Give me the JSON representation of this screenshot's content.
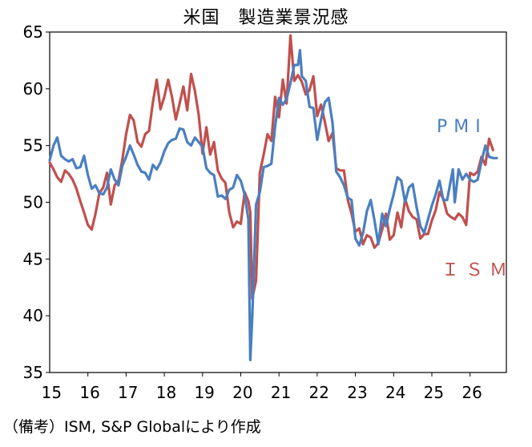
{
  "chart_data": {
    "type": "line",
    "title": "米国　製造業景況感",
    "xlabel": "",
    "ylabel": "",
    "ylim": [
      35,
      65
    ],
    "xlim": [
      2015.0,
      2026.95
    ],
    "yticks": [
      "65",
      "60",
      "55",
      "50",
      "45",
      "40",
      "35"
    ],
    "xticks": [
      "15",
      "16",
      "17",
      "18",
      "19",
      "20",
      "21",
      "22",
      "23",
      "24",
      "25",
      "26"
    ],
    "grid": false,
    "series": [
      {
        "name": "PMI",
        "color": "#4a7fc0",
        "label_position": "right",
        "points": [
          [
            2015.0,
            53.7
          ],
          [
            2015.1,
            55.0
          ],
          [
            2015.2,
            55.7
          ],
          [
            2015.3,
            54.1
          ],
          [
            2015.4,
            53.8
          ],
          [
            2015.5,
            53.6
          ],
          [
            2015.6,
            53.8
          ],
          [
            2015.7,
            53.0
          ],
          [
            2015.8,
            53.1
          ],
          [
            2015.9,
            54.1
          ],
          [
            2016.0,
            52.4
          ],
          [
            2016.1,
            51.2
          ],
          [
            2016.2,
            51.5
          ],
          [
            2016.3,
            50.8
          ],
          [
            2016.4,
            50.7
          ],
          [
            2016.5,
            51.3
          ],
          [
            2016.6,
            52.9
          ],
          [
            2016.7,
            52.0
          ],
          [
            2016.8,
            51.5
          ],
          [
            2016.9,
            53.2
          ],
          [
            2017.0,
            54.0
          ],
          [
            2017.1,
            55.0
          ],
          [
            2017.2,
            54.2
          ],
          [
            2017.3,
            53.3
          ],
          [
            2017.4,
            52.7
          ],
          [
            2017.5,
            52.6
          ],
          [
            2017.6,
            52.0
          ],
          [
            2017.7,
            53.3
          ],
          [
            2017.8,
            52.9
          ],
          [
            2017.9,
            53.5
          ],
          [
            2018.0,
            54.5
          ],
          [
            2018.1,
            55.2
          ],
          [
            2018.2,
            55.5
          ],
          [
            2018.3,
            55.6
          ],
          [
            2018.4,
            56.5
          ],
          [
            2018.5,
            56.4
          ],
          [
            2018.6,
            55.3
          ],
          [
            2018.7,
            55.0
          ],
          [
            2018.8,
            55.7
          ],
          [
            2018.9,
            55.3
          ],
          [
            2019.0,
            54.9
          ],
          [
            2019.1,
            53.0
          ],
          [
            2019.2,
            52.6
          ],
          [
            2019.3,
            52.4
          ],
          [
            2019.4,
            50.5
          ],
          [
            2019.5,
            50.6
          ],
          [
            2019.6,
            50.3
          ],
          [
            2019.7,
            51.1
          ],
          [
            2019.8,
            51.3
          ],
          [
            2019.9,
            52.4
          ],
          [
            2020.0,
            51.9
          ],
          [
            2020.1,
            50.7
          ],
          [
            2020.2,
            48.5
          ],
          [
            2020.25,
            36.1
          ],
          [
            2020.3,
            39.8
          ],
          [
            2020.4,
            49.8
          ],
          [
            2020.5,
            50.9
          ],
          [
            2020.6,
            53.1
          ],
          [
            2020.7,
            53.2
          ],
          [
            2020.8,
            53.4
          ],
          [
            2020.9,
            56.7
          ],
          [
            2021.0,
            59.2
          ],
          [
            2021.1,
            58.6
          ],
          [
            2021.2,
            59.1
          ],
          [
            2021.3,
            60.5
          ],
          [
            2021.4,
            62.1
          ],
          [
            2021.5,
            62.1
          ],
          [
            2021.55,
            63.4
          ],
          [
            2021.6,
            61.1
          ],
          [
            2021.7,
            60.7
          ],
          [
            2021.8,
            58.4
          ],
          [
            2021.9,
            58.3
          ],
          [
            2022.0,
            55.5
          ],
          [
            2022.1,
            57.3
          ],
          [
            2022.2,
            58.8
          ],
          [
            2022.3,
            59.2
          ],
          [
            2022.4,
            57.0
          ],
          [
            2022.5,
            52.7
          ],
          [
            2022.6,
            52.2
          ],
          [
            2022.7,
            51.5
          ],
          [
            2022.8,
            50.4
          ],
          [
            2022.9,
            50.2
          ],
          [
            2023.0,
            46.8
          ],
          [
            2023.1,
            46.2
          ],
          [
            2023.2,
            47.3
          ],
          [
            2023.3,
            49.2
          ],
          [
            2023.4,
            50.2
          ],
          [
            2023.5,
            48.4
          ],
          [
            2023.6,
            46.3
          ],
          [
            2023.7,
            49.0
          ],
          [
            2023.8,
            47.9
          ],
          [
            2023.9,
            49.4
          ],
          [
            2024.0,
            50.7
          ],
          [
            2024.1,
            52.2
          ],
          [
            2024.2,
            51.9
          ],
          [
            2024.3,
            50.0
          ],
          [
            2024.4,
            51.3
          ],
          [
            2024.5,
            51.6
          ],
          [
            2024.6,
            49.6
          ],
          [
            2024.7,
            47.9
          ],
          [
            2024.8,
            47.3
          ],
          [
            2024.9,
            48.5
          ],
          [
            2025.0,
            49.7
          ],
          [
            2025.1,
            50.7
          ],
          [
            2025.2,
            51.9
          ],
          [
            2025.3,
            50.2
          ],
          [
            2025.4,
            50.2
          ],
          [
            2025.5,
            52.0
          ],
          [
            2025.55,
            52.9
          ],
          [
            2025.6,
            50.0
          ],
          [
            2025.7,
            52.9
          ],
          [
            2025.8,
            52.0
          ],
          [
            2025.9,
            52.5
          ],
          [
            2026.0,
            52.0
          ],
          [
            2026.1,
            51.8
          ],
          [
            2026.2,
            52.0
          ],
          [
            2026.3,
            53.6
          ],
          [
            2026.4,
            55.0
          ],
          [
            2026.5,
            54.0
          ],
          [
            2026.6,
            53.9
          ],
          [
            2026.7,
            53.9
          ]
        ]
      },
      {
        "name": "ＩＳＭ",
        "color": "#c0504d",
        "label_position": "right",
        "points": [
          [
            2015.0,
            53.5
          ],
          [
            2015.1,
            52.9
          ],
          [
            2015.2,
            52.2
          ],
          [
            2015.3,
            51.8
          ],
          [
            2015.4,
            52.8
          ],
          [
            2015.5,
            52.5
          ],
          [
            2015.6,
            52.0
          ],
          [
            2015.7,
            51.2
          ],
          [
            2015.8,
            50.1
          ],
          [
            2015.9,
            49.1
          ],
          [
            2016.0,
            48.0
          ],
          [
            2016.1,
            47.6
          ],
          [
            2016.2,
            49.0
          ],
          [
            2016.3,
            50.8
          ],
          [
            2016.4,
            51.3
          ],
          [
            2016.5,
            52.6
          ],
          [
            2016.6,
            49.8
          ],
          [
            2016.7,
            51.5
          ],
          [
            2016.8,
            51.9
          ],
          [
            2016.9,
            53.7
          ],
          [
            2017.0,
            56.0
          ],
          [
            2017.1,
            57.7
          ],
          [
            2017.2,
            57.2
          ],
          [
            2017.3,
            55.3
          ],
          [
            2017.4,
            54.9
          ],
          [
            2017.5,
            56.0
          ],
          [
            2017.6,
            56.3
          ],
          [
            2017.7,
            58.8
          ],
          [
            2017.8,
            60.8
          ],
          [
            2017.9,
            58.2
          ],
          [
            2018.0,
            59.3
          ],
          [
            2018.1,
            60.8
          ],
          [
            2018.2,
            59.3
          ],
          [
            2018.3,
            57.3
          ],
          [
            2018.4,
            58.7
          ],
          [
            2018.5,
            60.2
          ],
          [
            2018.6,
            58.1
          ],
          [
            2018.7,
            61.3
          ],
          [
            2018.8,
            59.8
          ],
          [
            2018.9,
            57.7
          ],
          [
            2019.0,
            54.3
          ],
          [
            2019.1,
            56.6
          ],
          [
            2019.2,
            54.2
          ],
          [
            2019.3,
            55.3
          ],
          [
            2019.4,
            52.8
          ],
          [
            2019.5,
            52.1
          ],
          [
            2019.6,
            51.7
          ],
          [
            2019.7,
            49.1
          ],
          [
            2019.8,
            47.8
          ],
          [
            2019.9,
            48.3
          ],
          [
            2020.0,
            48.1
          ],
          [
            2020.1,
            50.9
          ],
          [
            2020.2,
            50.1
          ],
          [
            2020.25,
            49.1
          ],
          [
            2020.3,
            41.5
          ],
          [
            2020.4,
            43.1
          ],
          [
            2020.5,
            52.6
          ],
          [
            2020.6,
            54.2
          ],
          [
            2020.7,
            56.0
          ],
          [
            2020.8,
            55.4
          ],
          [
            2020.9,
            59.3
          ],
          [
            2021.0,
            57.5
          ],
          [
            2021.1,
            60.8
          ],
          [
            2021.2,
            58.7
          ],
          [
            2021.3,
            64.7
          ],
          [
            2021.4,
            60.7
          ],
          [
            2021.5,
            61.2
          ],
          [
            2021.6,
            60.6
          ],
          [
            2021.7,
            59.5
          ],
          [
            2021.8,
            59.9
          ],
          [
            2021.9,
            61.1
          ],
          [
            2022.0,
            57.6
          ],
          [
            2022.1,
            58.6
          ],
          [
            2022.2,
            57.1
          ],
          [
            2022.3,
            55.4
          ],
          [
            2022.4,
            56.1
          ],
          [
            2022.5,
            53.0
          ],
          [
            2022.6,
            52.8
          ],
          [
            2022.7,
            52.8
          ],
          [
            2022.8,
            50.2
          ],
          [
            2022.9,
            49.0
          ],
          [
            2023.0,
            47.4
          ],
          [
            2023.1,
            47.7
          ],
          [
            2023.2,
            46.3
          ],
          [
            2023.3,
            47.1
          ],
          [
            2023.4,
            46.9
          ],
          [
            2023.5,
            46.0
          ],
          [
            2023.6,
            46.4
          ],
          [
            2023.7,
            47.6
          ],
          [
            2023.8,
            49.0
          ],
          [
            2023.9,
            46.7
          ],
          [
            2024.0,
            47.1
          ],
          [
            2024.1,
            49.1
          ],
          [
            2024.2,
            47.8
          ],
          [
            2024.3,
            50.3
          ],
          [
            2024.4,
            49.2
          ],
          [
            2024.5,
            48.7
          ],
          [
            2024.6,
            48.5
          ],
          [
            2024.7,
            46.8
          ],
          [
            2024.8,
            47.2
          ],
          [
            2024.9,
            47.2
          ],
          [
            2025.0,
            48.4
          ],
          [
            2025.1,
            49.3
          ],
          [
            2025.2,
            50.9
          ],
          [
            2025.3,
            50.3
          ],
          [
            2025.4,
            49.0
          ],
          [
            2025.5,
            48.7
          ],
          [
            2025.6,
            48.5
          ],
          [
            2025.7,
            49.0
          ],
          [
            2025.8,
            48.7
          ],
          [
            2025.9,
            48.0
          ],
          [
            2026.0,
            52.6
          ],
          [
            2026.1,
            52.4
          ],
          [
            2026.2,
            52.7
          ],
          [
            2026.3,
            54.0
          ],
          [
            2026.4,
            53.3
          ],
          [
            2026.5,
            55.6
          ],
          [
            2026.6,
            54.6
          ]
        ]
      }
    ]
  },
  "source_note": "（備考）ISM, S&P Globalにより作成"
}
